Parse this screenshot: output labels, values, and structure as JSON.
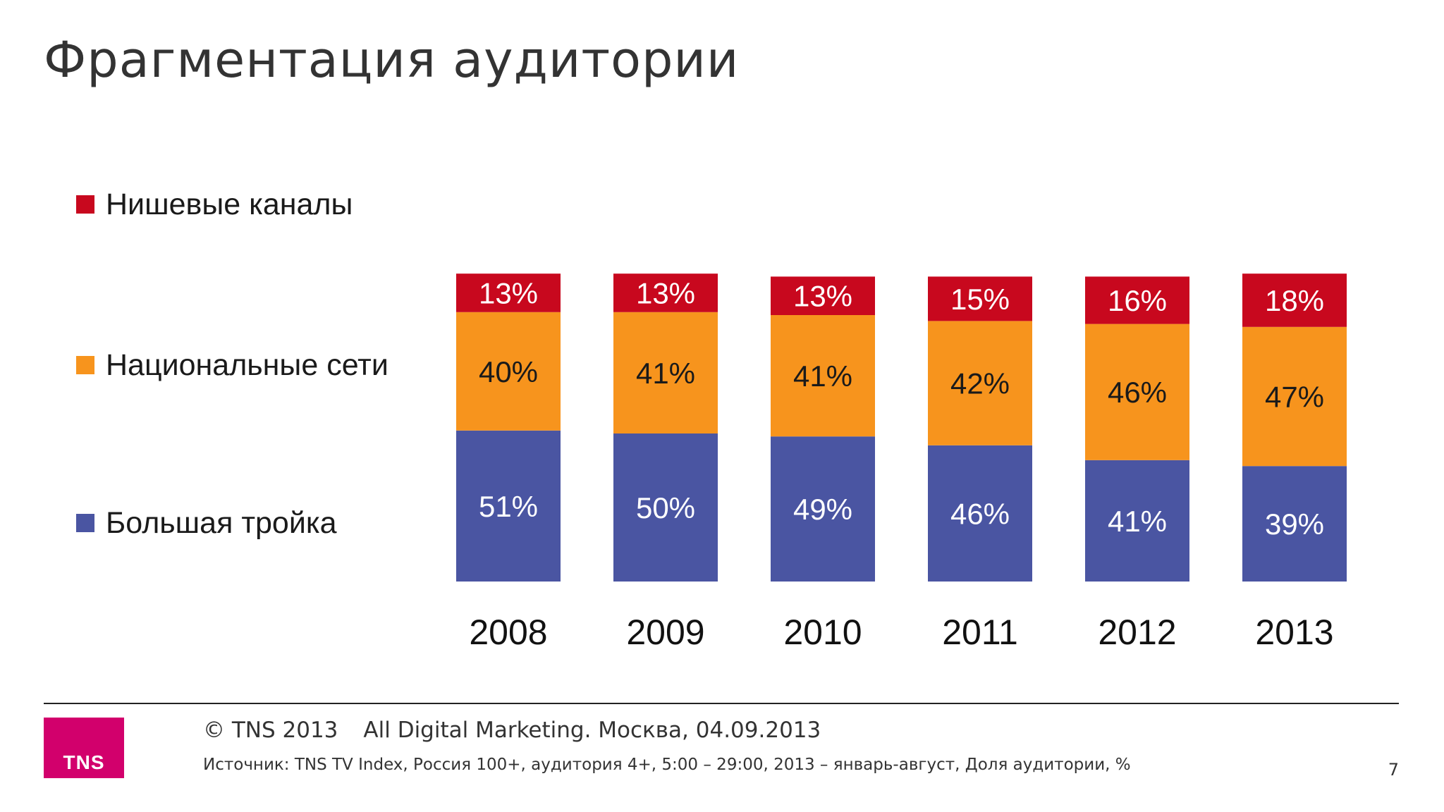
{
  "slide": {
    "title": "Фрагментация аудитории"
  },
  "colors": {
    "niche": "#c8081e",
    "national": "#f7941d",
    "big3": "#4a55a2"
  },
  "legend": [
    {
      "label": "Нишевые каналы",
      "color": "#c8081e"
    },
    {
      "label": "Национальные сети",
      "color": "#f7941d"
    },
    {
      "label": "Большая тройка",
      "color": "#4a55a2"
    }
  ],
  "chart_data": {
    "type": "bar",
    "stacked": true,
    "categories": [
      "2008",
      "2009",
      "2010",
      "2011",
      "2012",
      "2013"
    ],
    "series": [
      {
        "name": "Большая тройка",
        "values": [
          51,
          50,
          49,
          46,
          41,
          39
        ],
        "labels": [
          "51%",
          "50%",
          "49%",
          "46%",
          "41%",
          "39%"
        ],
        "color": "#4a55a2"
      },
      {
        "name": "Национальные сети",
        "values": [
          40,
          41,
          41,
          42,
          46,
          47
        ],
        "labels": [
          "40%",
          "41%",
          "41%",
          "42%",
          "46%",
          "47%"
        ],
        "color": "#f7941d"
      },
      {
        "name": "Нишевые каналы",
        "values": [
          13,
          13,
          13,
          15,
          16,
          18
        ],
        "labels": [
          "13%",
          "13%",
          "13%",
          "15%",
          "16%",
          "18%"
        ],
        "color": "#c8081e"
      }
    ],
    "legend_position": "left",
    "grid": false
  },
  "footer": {
    "copyright": "© TNS 2013",
    "event": "All Digital Marketing. Москва, 04.09.2013",
    "source": "Источник: TNS TV Index, Россия 100+, аудитория 4+, 5:00 – 29:00, 2013 – январь-август, Доля аудитории, %",
    "page_number": "7",
    "logo_text": "TNS"
  }
}
